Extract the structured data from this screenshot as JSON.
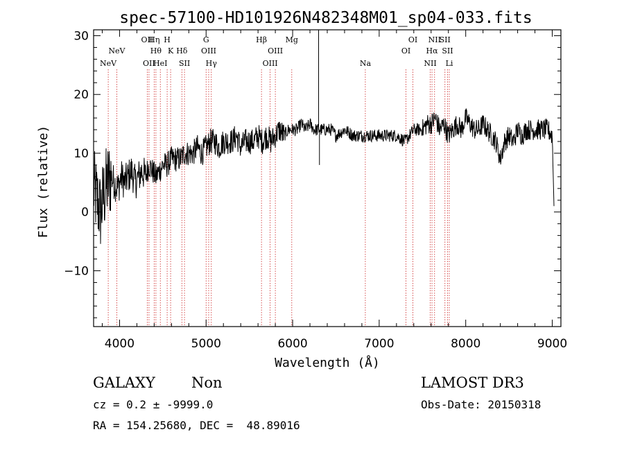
{
  "chart_data": {
    "type": "line",
    "title": "spec-57100-HD101926N482348M01_sp04-033.fits",
    "xlabel": "Wavelength (Å)",
    "ylabel": "Flux (relative)",
    "xlim": [
      3700,
      9100
    ],
    "ylim": [
      -19.5,
      31
    ],
    "xticks": [
      4000,
      5000,
      6000,
      7000,
      8000,
      9000
    ],
    "yticks": [
      -10,
      0,
      10,
      20,
      30
    ],
    "grid": false,
    "series": [
      {
        "name": "spectrum",
        "x": [
          3700,
          3740,
          3780,
          3820,
          3860,
          3900,
          3940,
          3980,
          4020,
          4060,
          4100,
          4140,
          4180,
          4220,
          4260,
          4300,
          4340,
          4380,
          4420,
          4460,
          4500,
          4550,
          4600,
          4650,
          4700,
          4750,
          4800,
          4850,
          4900,
          4950,
          5000,
          5050,
          5100,
          5150,
          5200,
          5250,
          5300,
          5350,
          5400,
          5450,
          5500,
          5550,
          5600,
          5650,
          5700,
          5750,
          5800,
          5850,
          5900,
          5950,
          6000,
          6050,
          6100,
          6150,
          6200,
          6250,
          6300,
          6350,
          6400,
          6450,
          6500,
          6600,
          6700,
          6800,
          6900,
          7000,
          7100,
          7200,
          7300,
          7400,
          7500,
          7550,
          7600,
          7650,
          7700,
          7750,
          7800,
          7850,
          7900,
          7950,
          8000,
          8050,
          8100,
          8150,
          8200,
          8250,
          8300,
          8350,
          8400,
          8450,
          8500,
          8550,
          8600,
          8650,
          8700,
          8750,
          8800,
          8850,
          8900,
          8950,
          9000,
          9020
        ],
        "y": [
          4,
          2,
          0,
          3,
          5,
          6,
          5,
          4,
          6,
          5,
          6,
          7,
          5,
          6,
          7,
          6,
          8,
          7,
          6,
          7,
          8,
          8,
          9,
          9,
          9,
          10,
          10,
          10,
          11,
          10,
          11,
          12,
          12,
          11,
          12,
          12,
          12,
          13,
          11,
          12,
          12,
          12,
          13,
          12,
          13,
          12,
          13,
          14,
          13,
          14,
          14,
          14,
          15,
          14,
          15,
          14,
          14,
          14,
          14,
          14,
          13,
          14,
          13,
          13,
          13,
          13,
          13,
          13,
          12,
          14,
          14,
          15,
          15,
          16,
          14,
          15,
          13,
          14,
          15,
          14,
          16,
          15,
          14,
          14,
          15,
          14,
          13,
          12,
          9,
          12,
          13,
          12,
          14,
          13,
          14,
          14,
          14,
          14,
          14,
          14,
          13,
          1
        ]
      }
    ],
    "spikes": [
      {
        "x": 6300,
        "y": 32
      },
      {
        "x": 6310,
        "y": 8
      }
    ],
    "noise_amplitude": [
      {
        "from": 3700,
        "to": 3900,
        "amp": 7
      },
      {
        "from": 3900,
        "to": 4300,
        "amp": 3
      },
      {
        "from": 4300,
        "to": 5900,
        "amp": 2.2
      },
      {
        "from": 5900,
        "to": 7500,
        "amp": 1.1
      },
      {
        "from": 7500,
        "to": 9020,
        "amp": 1.8
      }
    ],
    "lines": [
      {
        "x": 3869,
        "label": "NeV",
        "row": 3
      },
      {
        "x": 3968,
        "label": "NeV",
        "row": 2
      },
      {
        "x": 4320,
        "label": "OII",
        "row": 1
      },
      {
        "x": 4340,
        "label": "OII",
        "row": 3
      },
      {
        "x": 4400,
        "label": "Hη",
        "row": 1
      },
      {
        "x": 4420,
        "label": "Hθ",
        "row": 2
      },
      {
        "x": 4471,
        "label": "HeI",
        "row": 3
      },
      {
        "x": 4550,
        "label": "H",
        "row": 1
      },
      {
        "x": 4590,
        "label": "K",
        "row": 2
      },
      {
        "x": 4720,
        "label": "Hδ",
        "row": 2
      },
      {
        "x": 4750,
        "label": "SII",
        "row": 3
      },
      {
        "x": 5000,
        "label": "G",
        "row": 1
      },
      {
        "x": 5030,
        "label": "OIII",
        "row": 2
      },
      {
        "x": 5060,
        "label": "Hγ",
        "row": 3
      },
      {
        "x": 5640,
        "label": "Hβ",
        "row": 1
      },
      {
        "x": 5740,
        "label": "OIII",
        "row": 3
      },
      {
        "x": 5800,
        "label": "OIII",
        "row": 2
      },
      {
        "x": 5990,
        "label": "Mg",
        "row": 1
      },
      {
        "x": 6840,
        "label": "Na",
        "row": 3
      },
      {
        "x": 7310,
        "label": "OI",
        "row": 2
      },
      {
        "x": 7390,
        "label": "OI",
        "row": 1
      },
      {
        "x": 7590,
        "label": "NII",
        "row": 3
      },
      {
        "x": 7610,
        "label": "Hα",
        "row": 2
      },
      {
        "x": 7640,
        "label": "NII",
        "row": 1
      },
      {
        "x": 7760,
        "label": "SII",
        "row": 1
      },
      {
        "x": 7790,
        "label": "SII",
        "row": 2
      },
      {
        "x": 7810,
        "label": "Li",
        "row": 3
      }
    ]
  },
  "footer": {
    "object_class": "GALAXY",
    "subclass": "Non",
    "survey": "LAMOST DR3",
    "redshift": "cz = 0.2 ± -9999.0",
    "obs_date": "Obs-Date: 20150318",
    "coordinates": "RA = 154.25680, DEC =  48.89016"
  },
  "colors": {
    "axis": "#000000",
    "spectrum": "#000000",
    "line_markers": "#cc2222",
    "background": "#ffffff"
  }
}
